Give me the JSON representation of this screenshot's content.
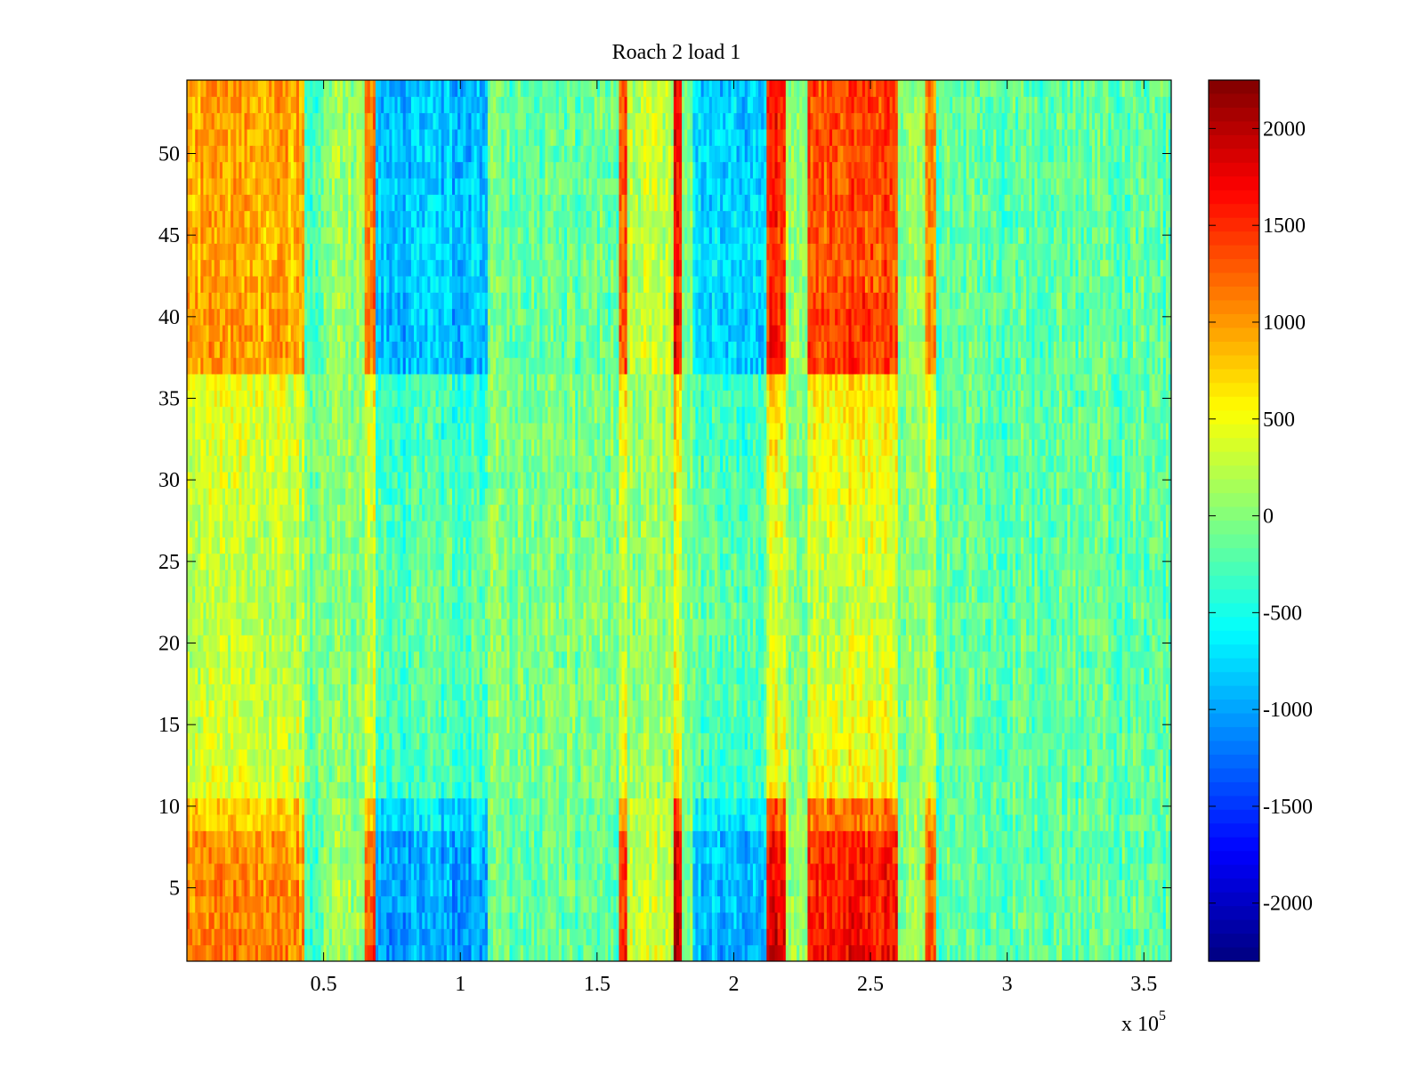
{
  "chart_data": {
    "type": "heatmap",
    "title": "Roach 2 load 1",
    "xlabel": "",
    "ylabel": "",
    "x_exponent_label": "x 10",
    "x_exponent_power": "5",
    "xlim": [
      0,
      3.6
    ],
    "ylim": [
      0.5,
      54.5
    ],
    "x_ticks": [
      0.5,
      1,
      1.5,
      2,
      2.5,
      3,
      3.5
    ],
    "x_tick_labels": [
      "0.5",
      "1",
      "1.5",
      "2",
      "2.5",
      "3",
      "3.5"
    ],
    "y_ticks": [
      5,
      10,
      15,
      20,
      25,
      30,
      35,
      40,
      45,
      50
    ],
    "y_tick_labels": [
      "5",
      "10",
      "15",
      "20",
      "25",
      "30",
      "35",
      "40",
      "45",
      "50"
    ],
    "rows": 54,
    "columns": 360,
    "colorbar": {
      "colormap": "jet",
      "clim": [
        -2300,
        2250
      ],
      "ticks": [
        -2000,
        -1500,
        -1000,
        -500,
        0,
        500,
        1000,
        1500,
        2000
      ],
      "tick_labels": [
        "-2000",
        "-1500",
        "-1000",
        "-500",
        "0",
        "500",
        "1000",
        "1500",
        "2000"
      ]
    },
    "column_bands": [
      {
        "x_start": 0.0,
        "x_end": 0.43,
        "mean": 900,
        "modulation": "edge"
      },
      {
        "x_start": 0.43,
        "x_end": 0.5,
        "mean": -300,
        "modulation": "edge"
      },
      {
        "x_start": 0.5,
        "x_end": 0.65,
        "mean": 100,
        "modulation": "edge"
      },
      {
        "x_start": 0.65,
        "x_end": 0.69,
        "mean": 1100,
        "modulation": "edge"
      },
      {
        "x_start": 0.69,
        "x_end": 1.1,
        "mean": -850,
        "modulation": "edge"
      },
      {
        "x_start": 1.1,
        "x_end": 1.58,
        "mean": -150,
        "modulation": "edge"
      },
      {
        "x_start": 1.58,
        "x_end": 1.61,
        "mean": 1300,
        "modulation": "edge"
      },
      {
        "x_start": 1.61,
        "x_end": 1.78,
        "mean": 250,
        "modulation": "edge"
      },
      {
        "x_start": 1.78,
        "x_end": 1.81,
        "mean": 1600,
        "modulation": "edge"
      },
      {
        "x_start": 1.81,
        "x_end": 1.85,
        "mean": 0,
        "modulation": "edge"
      },
      {
        "x_start": 1.85,
        "x_end": 2.12,
        "mean": -750,
        "modulation": "edge"
      },
      {
        "x_start": 2.12,
        "x_end": 2.19,
        "mean": 1500,
        "modulation": "edge"
      },
      {
        "x_start": 2.19,
        "x_end": 2.27,
        "mean": 100,
        "modulation": "edge"
      },
      {
        "x_start": 2.27,
        "x_end": 2.6,
        "mean": 1350,
        "modulation": "edge"
      },
      {
        "x_start": 2.6,
        "x_end": 2.7,
        "mean": 50,
        "modulation": "edge"
      },
      {
        "x_start": 2.7,
        "x_end": 2.74,
        "mean": 1100,
        "modulation": "edge"
      },
      {
        "x_start": 2.74,
        "x_end": 3.6,
        "mean": -250,
        "modulation": "flat"
      }
    ]
  }
}
